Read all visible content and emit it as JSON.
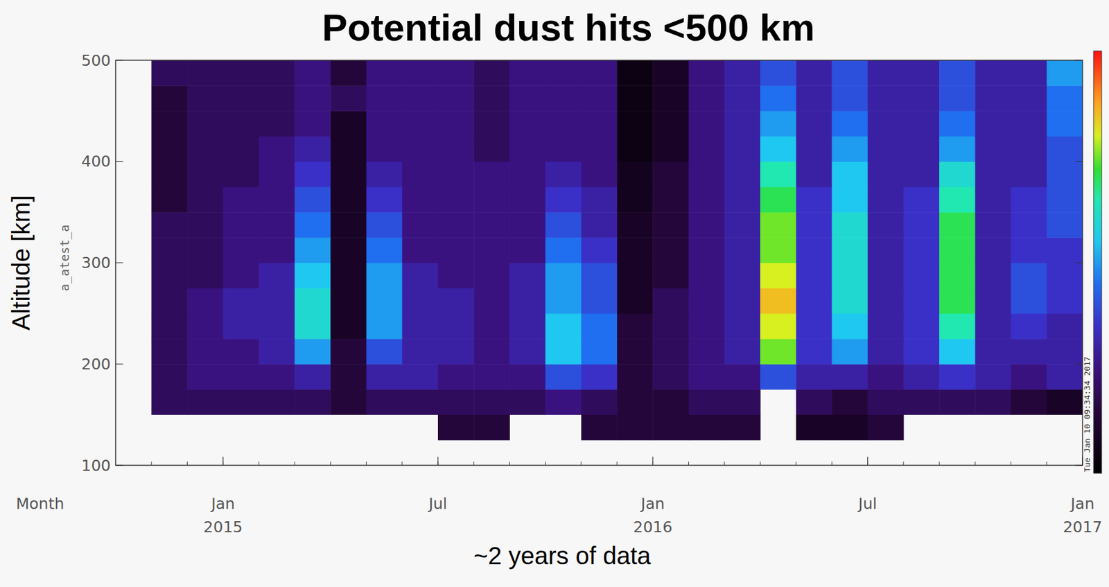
{
  "chart_data": {
    "type": "heatmap",
    "title": "Potential dust hits <500 km",
    "x_label": "~2 years of data",
    "y_label": "Altitude [km]",
    "y_sublabel": "a_atest_a",
    "annotations": [
      "Month",
      "Tue Jan 10 09:34:34 2017"
    ],
    "xlim": [
      "2014-10",
      "2017-01"
    ],
    "xticks": [
      {
        "value": "2015-01",
        "label": "Jan 2015"
      },
      {
        "value": "2015-07",
        "label": "Jul"
      },
      {
        "value": "2016-01",
        "label": "Jan 2016"
      },
      {
        "value": "2016-07",
        "label": "Jul"
      },
      {
        "value": "2017-01",
        "label": "Jan 2017"
      }
    ],
    "ylim": [
      100,
      500
    ],
    "yticks": [
      100,
      200,
      300,
      400,
      500
    ],
    "x_bins": [
      "2014-11",
      "2014-12",
      "2015-01",
      "2015-02",
      "2015-03",
      "2015-04",
      "2015-05",
      "2015-06",
      "2015-07",
      "2015-08",
      "2015-09",
      "2015-10",
      "2015-11",
      "2015-12",
      "2016-01",
      "2016-02",
      "2016-03",
      "2016-04",
      "2016-05",
      "2016-06",
      "2016-07",
      "2016-08",
      "2016-09",
      "2016-10",
      "2016-11",
      "2016-12",
      "2017-01"
    ],
    "y_bins": [
      125,
      150,
      175,
      200,
      225,
      250,
      275,
      300,
      325,
      350,
      375,
      400,
      425,
      450,
      475,
      500
    ],
    "color_range": [
      0,
      10
    ],
    "cells": [
      [
        null,
        null,
        null,
        null,
        null,
        null,
        null,
        null,
        1.5,
        1.5,
        null,
        null,
        1.5,
        1.5,
        1.5,
        1.5,
        1.5,
        null,
        1.0,
        1.0,
        1.5,
        null,
        null,
        null,
        null,
        null
      ],
      [
        2,
        2,
        2,
        2,
        2,
        1.5,
        2,
        2,
        2,
        2,
        2,
        2.5,
        2,
        1.5,
        1.5,
        2,
        2,
        null,
        2,
        1.5,
        2,
        2,
        2,
        2,
        1.5,
        1
      ],
      [
        2,
        2.5,
        2.5,
        2.5,
        3,
        1.5,
        3,
        3,
        2.5,
        2.5,
        2.5,
        4,
        3.5,
        1.5,
        2,
        2.5,
        2.5,
        4,
        3,
        3,
        2.5,
        3,
        3.5,
        3,
        2.5,
        3
      ],
      [
        2,
        2.5,
        2.5,
        3,
        5,
        1.5,
        4,
        3,
        3,
        2.5,
        3,
        5.5,
        4.5,
        1.5,
        2,
        2.5,
        3,
        7.5,
        3.5,
        5,
        3,
        3.5,
        5.5,
        3,
        3,
        3
      ],
      [
        2,
        2.5,
        3,
        3,
        6,
        1,
        5,
        3,
        3,
        2.5,
        3,
        5.5,
        4.5,
        1.5,
        2,
        2.5,
        3,
        8,
        3.5,
        5.5,
        3,
        3.5,
        6.5,
        3,
        3.5,
        3
      ],
      [
        2,
        2.5,
        3,
        3,
        6,
        1,
        5,
        3,
        3,
        2.5,
        3,
        5,
        4,
        1,
        2,
        2.5,
        3,
        8.5,
        3.5,
        6,
        3,
        3.5,
        7,
        3,
        4,
        3.5
      ],
      [
        2,
        2,
        2.5,
        3,
        5.5,
        1,
        5,
        3,
        2.5,
        2.5,
        3,
        5,
        4,
        1,
        1.5,
        2.5,
        3,
        8,
        3.5,
        6,
        3,
        3.5,
        7,
        3,
        4,
        3.5
      ],
      [
        2,
        2,
        2.5,
        2.5,
        5,
        1,
        4.5,
        2.5,
        2.5,
        2.5,
        2.5,
        4.5,
        3.5,
        1,
        1.5,
        2.5,
        3,
        7.5,
        3.5,
        6,
        3,
        3.5,
        7,
        3,
        3.5,
        3.5
      ],
      [
        2,
        2,
        2.5,
        2.5,
        4.5,
        1,
        4,
        2.5,
        2.5,
        2.5,
        2.5,
        4,
        3,
        1,
        1.5,
        2.5,
        3,
        7.5,
        3.5,
        6,
        3,
        3.5,
        7,
        3,
        3.5,
        4
      ],
      [
        1.5,
        2,
        2.5,
        2.5,
        4,
        1,
        3.5,
        2.5,
        2.5,
        2.5,
        2.5,
        3.5,
        3,
        0.8,
        1.5,
        2.5,
        3,
        7,
        3.5,
        5.5,
        3,
        3.5,
        6.5,
        3,
        3.5,
        4
      ],
      [
        1.5,
        2,
        2,
        2.5,
        3.5,
        1,
        3,
        2.5,
        2.5,
        2.5,
        2.5,
        3,
        2.5,
        0.8,
        1.5,
        2.5,
        3,
        6.5,
        3,
        5.5,
        3,
        3,
        6,
        3,
        3,
        4
      ],
      [
        1.5,
        2,
        2,
        2.5,
        3,
        1,
        2.5,
        2.5,
        2.5,
        2,
        2.5,
        2.5,
        2.5,
        0.5,
        1,
        2.5,
        3,
        5.5,
        3,
        5,
        3,
        3,
        5,
        3,
        3,
        4
      ],
      [
        1.5,
        2,
        2,
        2,
        2.5,
        1,
        2.5,
        2.5,
        2.5,
        2,
        2.5,
        2.5,
        2.5,
        0.5,
        1,
        2.5,
        3,
        5,
        3,
        4.5,
        3,
        3,
        4.5,
        3,
        3,
        4.5
      ],
      [
        1.5,
        2,
        2,
        2,
        2.5,
        2,
        2.5,
        2.5,
        2.5,
        2,
        2.5,
        2.5,
        2.5,
        0.5,
        1,
        2.5,
        3,
        4.5,
        3,
        4,
        3,
        3,
        4,
        3,
        3,
        4.5
      ],
      [
        2,
        2,
        2,
        2,
        2.5,
        1.5,
        2.5,
        2.5,
        2.5,
        2,
        2.5,
        2.5,
        2.5,
        0.5,
        1,
        2.5,
        3,
        4,
        3,
        4,
        3,
        3,
        4,
        3,
        3,
        5
      ]
    ]
  }
}
